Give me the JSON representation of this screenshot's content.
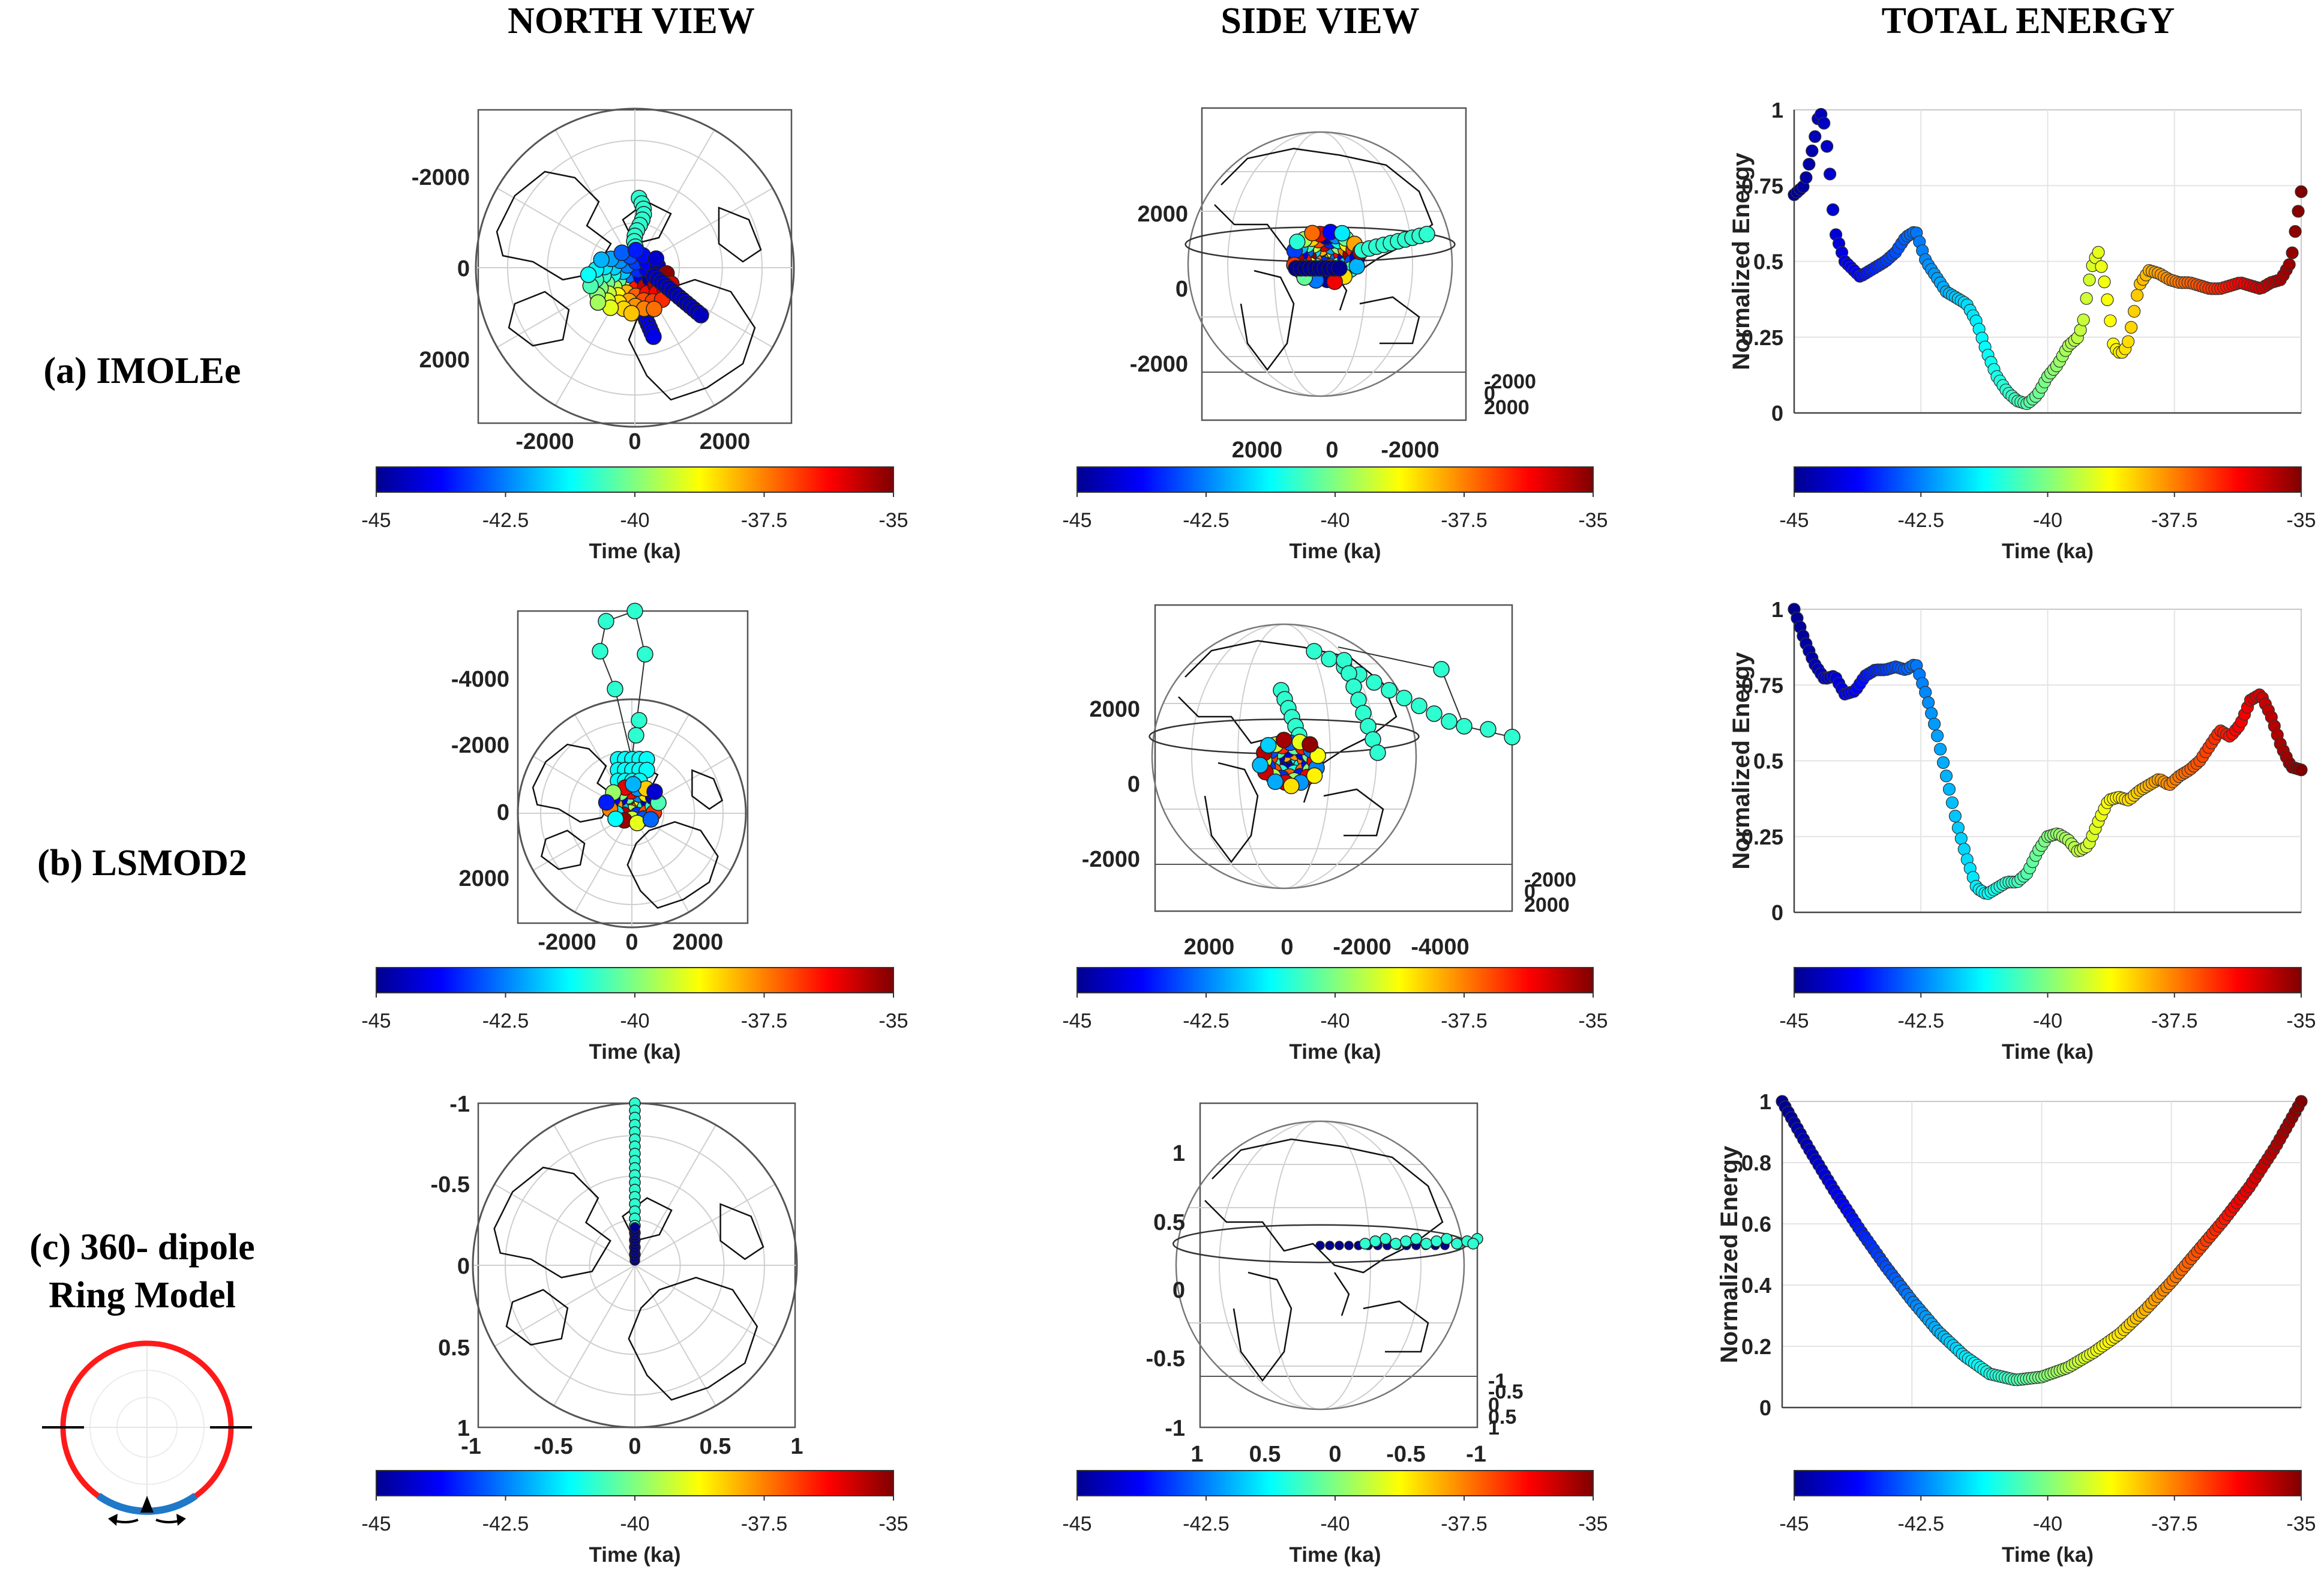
{
  "columns": [
    "NORTH VIEW",
    "SIDE VIEW",
    "TOTAL ENERGY"
  ],
  "rows": [
    {
      "label_lines": [
        "(a) IMOLEe"
      ]
    },
    {
      "label_lines": [
        "(b) LSMOD2"
      ]
    },
    {
      "label_lines": [
        "(c) 360- dipole",
        "Ring Model"
      ]
    }
  ],
  "colorbar": {
    "ticks": [
      "-45",
      "-42.5",
      "-40",
      "-37.5",
      "-35"
    ],
    "label": "Time (ka)",
    "colors": [
      "#00008f",
      "#0000ff",
      "#0080ff",
      "#00ffff",
      "#80ff80",
      "#ffff00",
      "#ff8000",
      "#ff0000",
      "#800000"
    ]
  },
  "north_view": [
    {
      "yticks": [
        "-2000",
        "0",
        "2000"
      ],
      "xticks": [
        "-2000",
        "0",
        "2000"
      ]
    },
    {
      "yticks": [
        "-4000",
        "-2000",
        "0",
        "2000"
      ],
      "xticks": [
        "-2000",
        "0",
        "2000"
      ]
    },
    {
      "yticks": [
        "-1",
        "-0.5",
        "0",
        "0.5",
        "1"
      ],
      "xticks": [
        "-1",
        "-0.5",
        "0",
        "0.5",
        "1"
      ]
    }
  ],
  "side_view": [
    {
      "yticks": [
        "2000",
        "0",
        "-2000"
      ],
      "xticks": [
        "2000",
        "0",
        "-2000"
      ],
      "zticks": [
        "-2000",
        "0",
        "2000"
      ]
    },
    {
      "yticks": [
        "2000",
        "0",
        "-2000"
      ],
      "xticks": [
        "2000",
        "0",
        "-2000",
        "-4000"
      ],
      "zticks": [
        "-2000",
        "0",
        "2000"
      ]
    },
    {
      "yticks": [
        "1",
        "0.5",
        "0",
        "-0.5",
        "-1"
      ],
      "xticks": [
        "1",
        "0.5",
        "0",
        "-0.5",
        "-1"
      ],
      "zticks": [
        "-1",
        "-0.5",
        "0",
        "0.5",
        "1"
      ]
    }
  ],
  "chart_data": [
    {
      "type": "scatter",
      "title": "(a) IMOLEe total energy",
      "xlabel": "Time (ka)",
      "ylabel": "Normalized Energy",
      "xlim": [
        -45,
        -35
      ],
      "ylim": [
        0,
        1
      ],
      "yticks": [
        "0",
        "0.25",
        "0.5",
        "0.75",
        "1"
      ],
      "x": [
        -45,
        -44.8,
        -44.6,
        -44.5,
        -44.4,
        -44.3,
        -44.2,
        -44.0,
        -43.7,
        -43.5,
        -43.2,
        -43.0,
        -42.8,
        -42.6,
        -42.5,
        -42.4,
        -42.2,
        -42.0,
        -41.8,
        -41.6,
        -41.4,
        -41.2,
        -41.0,
        -40.8,
        -40.6,
        -40.4,
        -40.2,
        -40.0,
        -39.8,
        -39.6,
        -39.4,
        -39.3,
        -39.2,
        -39.1,
        -39.0,
        -38.9,
        -38.8,
        -38.7,
        -38.6,
        -38.5,
        -38.4,
        -38.3,
        -38.2,
        -38.0,
        -37.8,
        -37.6,
        -37.4,
        -37.2,
        -37.0,
        -36.8,
        -36.6,
        -36.4,
        -36.2,
        -36.0,
        -35.8,
        -35.6,
        -35.4,
        -35.2,
        -35.1,
        -35.0
      ],
      "values": [
        0.72,
        0.75,
        0.9,
        1.0,
        0.95,
        0.8,
        0.6,
        0.5,
        0.45,
        0.47,
        0.5,
        0.53,
        0.58,
        0.6,
        0.55,
        0.5,
        0.45,
        0.4,
        0.38,
        0.36,
        0.3,
        0.2,
        0.12,
        0.07,
        0.04,
        0.03,
        0.06,
        0.12,
        0.16,
        0.22,
        0.25,
        0.3,
        0.42,
        0.5,
        0.53,
        0.45,
        0.35,
        0.22,
        0.2,
        0.2,
        0.24,
        0.33,
        0.42,
        0.47,
        0.46,
        0.44,
        0.43,
        0.43,
        0.42,
        0.41,
        0.41,
        0.42,
        0.43,
        0.42,
        0.41,
        0.43,
        0.44,
        0.5,
        0.62,
        0.73
      ]
    },
    {
      "type": "scatter",
      "title": "(b) LSMOD2 total energy",
      "xlabel": "Time (ka)",
      "ylabel": "Normalized Energy",
      "xlim": [
        -45,
        -35
      ],
      "ylim": [
        0,
        1
      ],
      "yticks": [
        "0",
        "0.25",
        "0.5",
        "0.75",
        "1"
      ],
      "x": [
        -45,
        -44.8,
        -44.6,
        -44.4,
        -44.2,
        -44.0,
        -43.8,
        -43.6,
        -43.4,
        -43.2,
        -43.0,
        -42.8,
        -42.6,
        -42.4,
        -42.2,
        -42.0,
        -41.8,
        -41.6,
        -41.4,
        -41.2,
        -41.0,
        -40.8,
        -40.6,
        -40.4,
        -40.2,
        -40.0,
        -39.8,
        -39.6,
        -39.4,
        -39.2,
        -39.0,
        -38.8,
        -38.6,
        -38.4,
        -38.2,
        -38.0,
        -37.8,
        -37.6,
        -37.4,
        -37.2,
        -37.0,
        -36.8,
        -36.6,
        -36.4,
        -36.2,
        -36.0,
        -35.8,
        -35.6,
        -35.4,
        -35.2,
        -35.0
      ],
      "values": [
        1.0,
        0.9,
        0.82,
        0.77,
        0.78,
        0.72,
        0.73,
        0.78,
        0.8,
        0.8,
        0.81,
        0.8,
        0.82,
        0.72,
        0.6,
        0.45,
        0.3,
        0.18,
        0.08,
        0.06,
        0.08,
        0.1,
        0.1,
        0.13,
        0.2,
        0.25,
        0.26,
        0.24,
        0.2,
        0.22,
        0.3,
        0.37,
        0.38,
        0.37,
        0.4,
        0.42,
        0.44,
        0.42,
        0.45,
        0.47,
        0.5,
        0.55,
        0.6,
        0.58,
        0.62,
        0.7,
        0.72,
        0.65,
        0.55,
        0.48,
        0.47
      ]
    },
    {
      "type": "scatter",
      "title": "(c) 360- dipole Ring Model total energy",
      "xlabel": "Time (ka)",
      "ylabel": "Normalized Energy",
      "xlim": [
        -45,
        -35
      ],
      "ylim": [
        0,
        1
      ],
      "yticks": [
        "0",
        "0.2",
        "0.4",
        "0.6",
        "0.8",
        "1"
      ],
      "x": [
        -45,
        -44.5,
        -44.0,
        -43.5,
        -43.0,
        -42.5,
        -42.0,
        -41.5,
        -41.0,
        -40.5,
        -40.0,
        -39.5,
        -39.0,
        -38.5,
        -38.0,
        -37.5,
        -37.0,
        -36.5,
        -36.0,
        -35.5,
        -35.0
      ],
      "values": [
        1.0,
        0.85,
        0.71,
        0.58,
        0.46,
        0.35,
        0.25,
        0.17,
        0.11,
        0.09,
        0.1,
        0.13,
        0.18,
        0.24,
        0.32,
        0.41,
        0.51,
        0.61,
        0.72,
        0.85,
        1.0
      ]
    }
  ]
}
